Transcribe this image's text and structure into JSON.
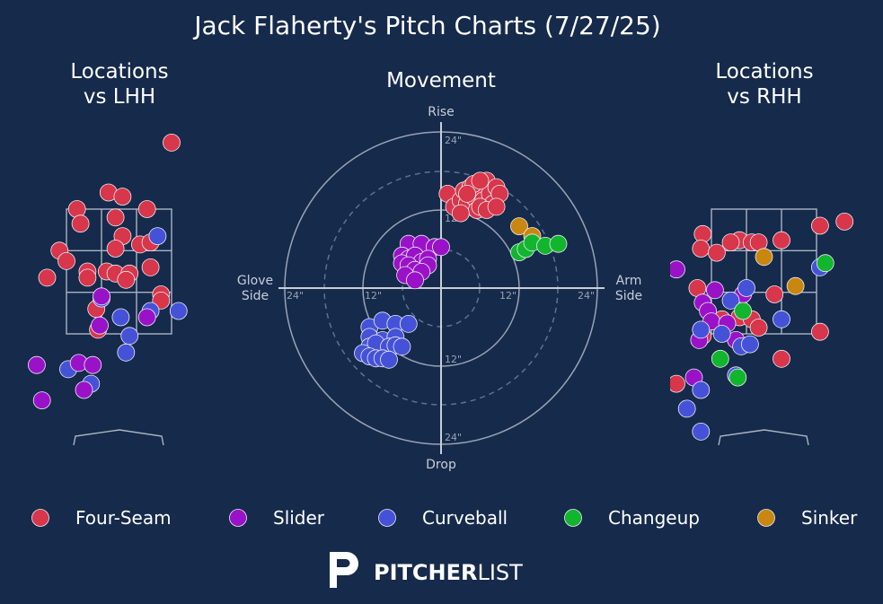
{
  "title": "Jack Flaherty's Pitch Charts (7/27/25)",
  "panels": {
    "lhh_title_1": "Locations",
    "lhh_title_2": "vs LHH",
    "movement_title": "Movement",
    "rhh_title_1": "Locations",
    "rhh_title_2": "vs RHH"
  },
  "movement_axes": {
    "top": "Rise",
    "bottom": "Drop",
    "left_1": "Glove",
    "left_2": "Side",
    "right_1": "Arm",
    "right_2": "Side",
    "ring_labels": {
      "top_outer": "24\"",
      "top_inner": "12\"",
      "bottom_inner": "12\"",
      "bottom_outer": "24\"",
      "left_outer": "24\"",
      "left_inner": "12\"",
      "right_inner": "12\"",
      "right_outer": "24\""
    }
  },
  "colors": {
    "background": "#162a4b",
    "Four-Seam": "#d8364b",
    "Slider": "#9a12c8",
    "Curveball": "#4552d8",
    "Changeup": "#12b52e",
    "Sinker": "#c98710"
  },
  "legend": [
    "Four-Seam",
    "Slider",
    "Curveball",
    "Changeup",
    "Sinker"
  ],
  "brand": {
    "bold": "PITCHER",
    "light": "LIST"
  },
  "chart_data": [
    {
      "type": "scatter",
      "name": "locations-lhh",
      "title": "Locations vs LHH",
      "units": "grid cells from strike zone upper-left (3x3 zone)",
      "points": [
        {
          "pitch": "Four-Seam",
          "x": 3.0,
          "y": -1.6
        },
        {
          "pitch": "Four-Seam",
          "x": 1.2,
          "y": -0.4
        },
        {
          "pitch": "Four-Seam",
          "x": 1.6,
          "y": -0.3
        },
        {
          "pitch": "Four-Seam",
          "x": 0.3,
          "y": 0.0
        },
        {
          "pitch": "Four-Seam",
          "x": 2.3,
          "y": 0.0
        },
        {
          "pitch": "Four-Seam",
          "x": 0.4,
          "y": 0.35
        },
        {
          "pitch": "Four-Seam",
          "x": 1.4,
          "y": 0.2
        },
        {
          "pitch": "Four-Seam",
          "x": 1.6,
          "y": 0.65
        },
        {
          "pitch": "Four-Seam",
          "x": 1.4,
          "y": 0.95
        },
        {
          "pitch": "Four-Seam",
          "x": -0.2,
          "y": 1.0
        },
        {
          "pitch": "Four-Seam",
          "x": 0.0,
          "y": 1.25
        },
        {
          "pitch": "Four-Seam",
          "x": 2.1,
          "y": 0.85
        },
        {
          "pitch": "Four-Seam",
          "x": 2.4,
          "y": 0.8
        },
        {
          "pitch": "Four-Seam",
          "x": 2.4,
          "y": 1.4
        },
        {
          "pitch": "Four-Seam",
          "x": -0.55,
          "y": 1.65
        },
        {
          "pitch": "Four-Seam",
          "x": 0.6,
          "y": 1.5
        },
        {
          "pitch": "Four-Seam",
          "x": 0.6,
          "y": 1.65
        },
        {
          "pitch": "Four-Seam",
          "x": 1.15,
          "y": 1.5
        },
        {
          "pitch": "Four-Seam",
          "x": 1.4,
          "y": 1.55
        },
        {
          "pitch": "Four-Seam",
          "x": 1.8,
          "y": 1.55
        },
        {
          "pitch": "Four-Seam",
          "x": 1.7,
          "y": 1.7
        },
        {
          "pitch": "Four-Seam",
          "x": 2.7,
          "y": 2.05
        },
        {
          "pitch": "Four-Seam",
          "x": 2.7,
          "y": 2.2
        },
        {
          "pitch": "Four-Seam",
          "x": 0.85,
          "y": 2.4
        },
        {
          "pitch": "Four-Seam",
          "x": 0.9,
          "y": 2.9
        },
        {
          "pitch": "Curveball",
          "x": 2.6,
          "y": 0.65
        },
        {
          "pitch": "Curveball",
          "x": 1.0,
          "y": 2.15
        },
        {
          "pitch": "Curveball",
          "x": 1.55,
          "y": 2.6
        },
        {
          "pitch": "Curveball",
          "x": 3.2,
          "y": 2.45
        },
        {
          "pitch": "Curveball",
          "x": 2.4,
          "y": 2.45
        },
        {
          "pitch": "Curveball",
          "x": 1.8,
          "y": 3.05
        },
        {
          "pitch": "Curveball",
          "x": 1.7,
          "y": 3.45
        },
        {
          "pitch": "Curveball",
          "x": 0.05,
          "y": 3.85
        },
        {
          "pitch": "Curveball",
          "x": 0.7,
          "y": 4.2
        },
        {
          "pitch": "Slider",
          "x": 1.0,
          "y": 2.1
        },
        {
          "pitch": "Slider",
          "x": 0.95,
          "y": 2.8
        },
        {
          "pitch": "Slider",
          "x": 2.3,
          "y": 2.6
        },
        {
          "pitch": "Slider",
          "x": -0.85,
          "y": 3.75
        },
        {
          "pitch": "Slider",
          "x": 0.35,
          "y": 3.7
        },
        {
          "pitch": "Slider",
          "x": 0.75,
          "y": 3.75
        },
        {
          "pitch": "Slider",
          "x": 0.5,
          "y": 4.35
        },
        {
          "pitch": "Slider",
          "x": -0.7,
          "y": 4.6
        }
      ]
    },
    {
      "type": "scatter",
      "name": "movement",
      "title": "Movement",
      "xlabel": "Glove Side / Arm Side (in)",
      "ylabel": "Drop / Rise (in)",
      "xlim": [
        -24,
        24
      ],
      "ylim": [
        -24,
        24
      ],
      "points": [
        {
          "pitch": "Four-Seam",
          "x": 1.0,
          "y": 14.5
        },
        {
          "pitch": "Four-Seam",
          "x": 2.0,
          "y": 12.5
        },
        {
          "pitch": "Four-Seam",
          "x": 3.0,
          "y": 13.5
        },
        {
          "pitch": "Four-Seam",
          "x": 3.5,
          "y": 15.0
        },
        {
          "pitch": "Four-Seam",
          "x": 4.0,
          "y": 13.0
        },
        {
          "pitch": "Four-Seam",
          "x": 4.5,
          "y": 15.5
        },
        {
          "pitch": "Four-Seam",
          "x": 5.0,
          "y": 14.0
        },
        {
          "pitch": "Four-Seam",
          "x": 5.5,
          "y": 12.0
        },
        {
          "pitch": "Four-Seam",
          "x": 6.0,
          "y": 15.0
        },
        {
          "pitch": "Four-Seam",
          "x": 6.5,
          "y": 13.5
        },
        {
          "pitch": "Four-Seam",
          "x": 7.0,
          "y": 16.5
        },
        {
          "pitch": "Four-Seam",
          "x": 7.5,
          "y": 14.5
        },
        {
          "pitch": "Four-Seam",
          "x": 8.0,
          "y": 13.0
        },
        {
          "pitch": "Four-Seam",
          "x": 8.5,
          "y": 15.5
        },
        {
          "pitch": "Four-Seam",
          "x": 9.0,
          "y": 14.5
        },
        {
          "pitch": "Four-Seam",
          "x": 5.0,
          "y": 16.0
        },
        {
          "pitch": "Four-Seam",
          "x": 6.0,
          "y": 12.5
        },
        {
          "pitch": "Four-Seam",
          "x": 7.0,
          "y": 12.0
        },
        {
          "pitch": "Four-Seam",
          "x": 4.0,
          "y": 14.5
        },
        {
          "pitch": "Four-Seam",
          "x": 6.0,
          "y": 16.5
        },
        {
          "pitch": "Four-Seam",
          "x": 3.0,
          "y": 11.5
        },
        {
          "pitch": "Four-Seam",
          "x": 8.5,
          "y": 12.5
        },
        {
          "pitch": "Sinker",
          "x": 12.0,
          "y": 9.5
        },
        {
          "pitch": "Sinker",
          "x": 14.0,
          "y": 8.0
        },
        {
          "pitch": "Changeup",
          "x": 12.0,
          "y": 5.5
        },
        {
          "pitch": "Changeup",
          "x": 13.0,
          "y": 6.0
        },
        {
          "pitch": "Changeup",
          "x": 14.0,
          "y": 7.0
        },
        {
          "pitch": "Changeup",
          "x": 16.0,
          "y": 6.5
        },
        {
          "pitch": "Changeup",
          "x": 18.0,
          "y": 6.8
        },
        {
          "pitch": "Slider",
          "x": -5.0,
          "y": 6.8
        },
        {
          "pitch": "Slider",
          "x": -3.0,
          "y": 6.8
        },
        {
          "pitch": "Slider",
          "x": -1.0,
          "y": 6.3
        },
        {
          "pitch": "Slider",
          "x": 0.0,
          "y": 6.3
        },
        {
          "pitch": "Slider",
          "x": -6.0,
          "y": 5.0
        },
        {
          "pitch": "Slider",
          "x": -5.0,
          "y": 4.5
        },
        {
          "pitch": "Slider",
          "x": -4.0,
          "y": 5.0
        },
        {
          "pitch": "Slider",
          "x": -3.0,
          "y": 4.0
        },
        {
          "pitch": "Slider",
          "x": -2.0,
          "y": 4.5
        },
        {
          "pitch": "Slider",
          "x": -6.0,
          "y": 3.8
        },
        {
          "pitch": "Slider",
          "x": -5.0,
          "y": 3.5
        },
        {
          "pitch": "Slider",
          "x": -4.0,
          "y": 2.8
        },
        {
          "pitch": "Slider",
          "x": -2.0,
          "y": 3.5
        },
        {
          "pitch": "Slider",
          "x": -5.5,
          "y": 2.0
        },
        {
          "pitch": "Slider",
          "x": -3.0,
          "y": 2.5
        },
        {
          "pitch": "Slider",
          "x": -4.0,
          "y": 1.2
        },
        {
          "pitch": "Curveball",
          "x": -11.0,
          "y": -6.0
        },
        {
          "pitch": "Curveball",
          "x": -9.0,
          "y": -5.0
        },
        {
          "pitch": "Curveball",
          "x": -7.0,
          "y": -5.5
        },
        {
          "pitch": "Curveball",
          "x": -5.0,
          "y": -5.5
        },
        {
          "pitch": "Curveball",
          "x": -11.0,
          "y": -7.5
        },
        {
          "pitch": "Curveball",
          "x": -9.0,
          "y": -8.0
        },
        {
          "pitch": "Curveball",
          "x": -7.0,
          "y": -7.5
        },
        {
          "pitch": "Curveball",
          "x": -11.0,
          "y": -9.0
        },
        {
          "pitch": "Curveball",
          "x": -10.0,
          "y": -8.5
        },
        {
          "pitch": "Curveball",
          "x": -8.0,
          "y": -9.0
        },
        {
          "pitch": "Curveball",
          "x": -7.0,
          "y": -8.8
        },
        {
          "pitch": "Curveball",
          "x": -6.0,
          "y": -9.0
        },
        {
          "pitch": "Curveball",
          "x": -12.0,
          "y": -10.0
        },
        {
          "pitch": "Curveball",
          "x": -11.0,
          "y": -10.5
        },
        {
          "pitch": "Curveball",
          "x": -10.0,
          "y": -10.8
        },
        {
          "pitch": "Curveball",
          "x": -9.0,
          "y": -10.8
        },
        {
          "pitch": "Curveball",
          "x": -8.0,
          "y": -11.0
        }
      ]
    },
    {
      "type": "scatter",
      "name": "locations-rhh",
      "title": "Locations vs RHH",
      "units": "grid cells from strike zone upper-left (3x3 zone)",
      "points": [
        {
          "pitch": "Four-Seam",
          "x": 3.8,
          "y": 0.3
        },
        {
          "pitch": "Four-Seam",
          "x": 3.1,
          "y": 0.4
        },
        {
          "pitch": "Four-Seam",
          "x": -0.25,
          "y": 0.6
        },
        {
          "pitch": "Four-Seam",
          "x": 0.8,
          "y": 0.75
        },
        {
          "pitch": "Four-Seam",
          "x": 1.15,
          "y": 0.8
        },
        {
          "pitch": "Four-Seam",
          "x": 1.35,
          "y": 0.8
        },
        {
          "pitch": "Four-Seam",
          "x": 2.0,
          "y": 0.75
        },
        {
          "pitch": "Four-Seam",
          "x": -0.3,
          "y": 0.95
        },
        {
          "pitch": "Four-Seam",
          "x": 0.15,
          "y": 1.05
        },
        {
          "pitch": "Four-Seam",
          "x": 0.55,
          "y": 0.8
        },
        {
          "pitch": "Four-Seam",
          "x": -0.4,
          "y": 1.9
        },
        {
          "pitch": "Four-Seam",
          "x": 1.8,
          "y": 2.05
        },
        {
          "pitch": "Four-Seam",
          "x": 0.8,
          "y": 2.6
        },
        {
          "pitch": "Four-Seam",
          "x": 1.15,
          "y": 2.65
        },
        {
          "pitch": "Four-Seam",
          "x": 0.3,
          "y": 2.65
        },
        {
          "pitch": "Four-Seam",
          "x": -0.25,
          "y": 3.05
        },
        {
          "pitch": "Four-Seam",
          "x": 1.35,
          "y": 2.85
        },
        {
          "pitch": "Four-Seam",
          "x": 3.1,
          "y": 2.95
        },
        {
          "pitch": "Four-Seam",
          "x": 2.0,
          "y": 3.6
        },
        {
          "pitch": "Four-Seam",
          "x": -1.0,
          "y": 4.2
        },
        {
          "pitch": "Slider",
          "x": -1.0,
          "y": 1.45
        },
        {
          "pitch": "Slider",
          "x": 0.1,
          "y": 1.95
        },
        {
          "pitch": "Slider",
          "x": 0.9,
          "y": 2.05
        },
        {
          "pitch": "Slider",
          "x": -0.25,
          "y": 2.25
        },
        {
          "pitch": "Slider",
          "x": -0.1,
          "y": 2.45
        },
        {
          "pitch": "Slider",
          "x": 0.0,
          "y": 2.7
        },
        {
          "pitch": "Slider",
          "x": 0.45,
          "y": 2.75
        },
        {
          "pitch": "Slider",
          "x": 0.7,
          "y": 3.15
        },
        {
          "pitch": "Slider",
          "x": -0.35,
          "y": 3.15
        },
        {
          "pitch": "Slider",
          "x": -1.6,
          "y": 3.35
        },
        {
          "pitch": "Slider",
          "x": -1.5,
          "y": 3.95
        },
        {
          "pitch": "Slider",
          "x": -0.5,
          "y": 4.05
        },
        {
          "pitch": "Curveball",
          "x": 1.0,
          "y": 1.9
        },
        {
          "pitch": "Curveball",
          "x": 0.55,
          "y": 2.2
        },
        {
          "pitch": "Curveball",
          "x": 2.0,
          "y": 2.65
        },
        {
          "pitch": "Curveball",
          "x": -0.3,
          "y": 2.9
        },
        {
          "pitch": "Curveball",
          "x": 0.3,
          "y": 3.0
        },
        {
          "pitch": "Curveball",
          "x": 0.85,
          "y": 3.3
        },
        {
          "pitch": "Curveball",
          "x": 1.1,
          "y": 3.25
        },
        {
          "pitch": "Curveball",
          "x": 3.1,
          "y": 1.4
        },
        {
          "pitch": "Curveball",
          "x": -0.3,
          "y": 4.35
        },
        {
          "pitch": "Curveball",
          "x": -0.7,
          "y": 4.8
        },
        {
          "pitch": "Curveball",
          "x": -0.3,
          "y": 5.35
        },
        {
          "pitch": "Curveball",
          "x": 0.7,
          "y": 4.0
        },
        {
          "pitch": "Changeup",
          "x": 3.25,
          "y": 1.3
        },
        {
          "pitch": "Changeup",
          "x": 0.9,
          "y": 2.45
        },
        {
          "pitch": "Changeup",
          "x": 0.25,
          "y": 3.6
        },
        {
          "pitch": "Changeup",
          "x": 0.75,
          "y": 4.05
        },
        {
          "pitch": "Sinker",
          "x": 1.5,
          "y": 1.15
        },
        {
          "pitch": "Sinker",
          "x": 2.4,
          "y": 1.85
        }
      ]
    }
  ]
}
